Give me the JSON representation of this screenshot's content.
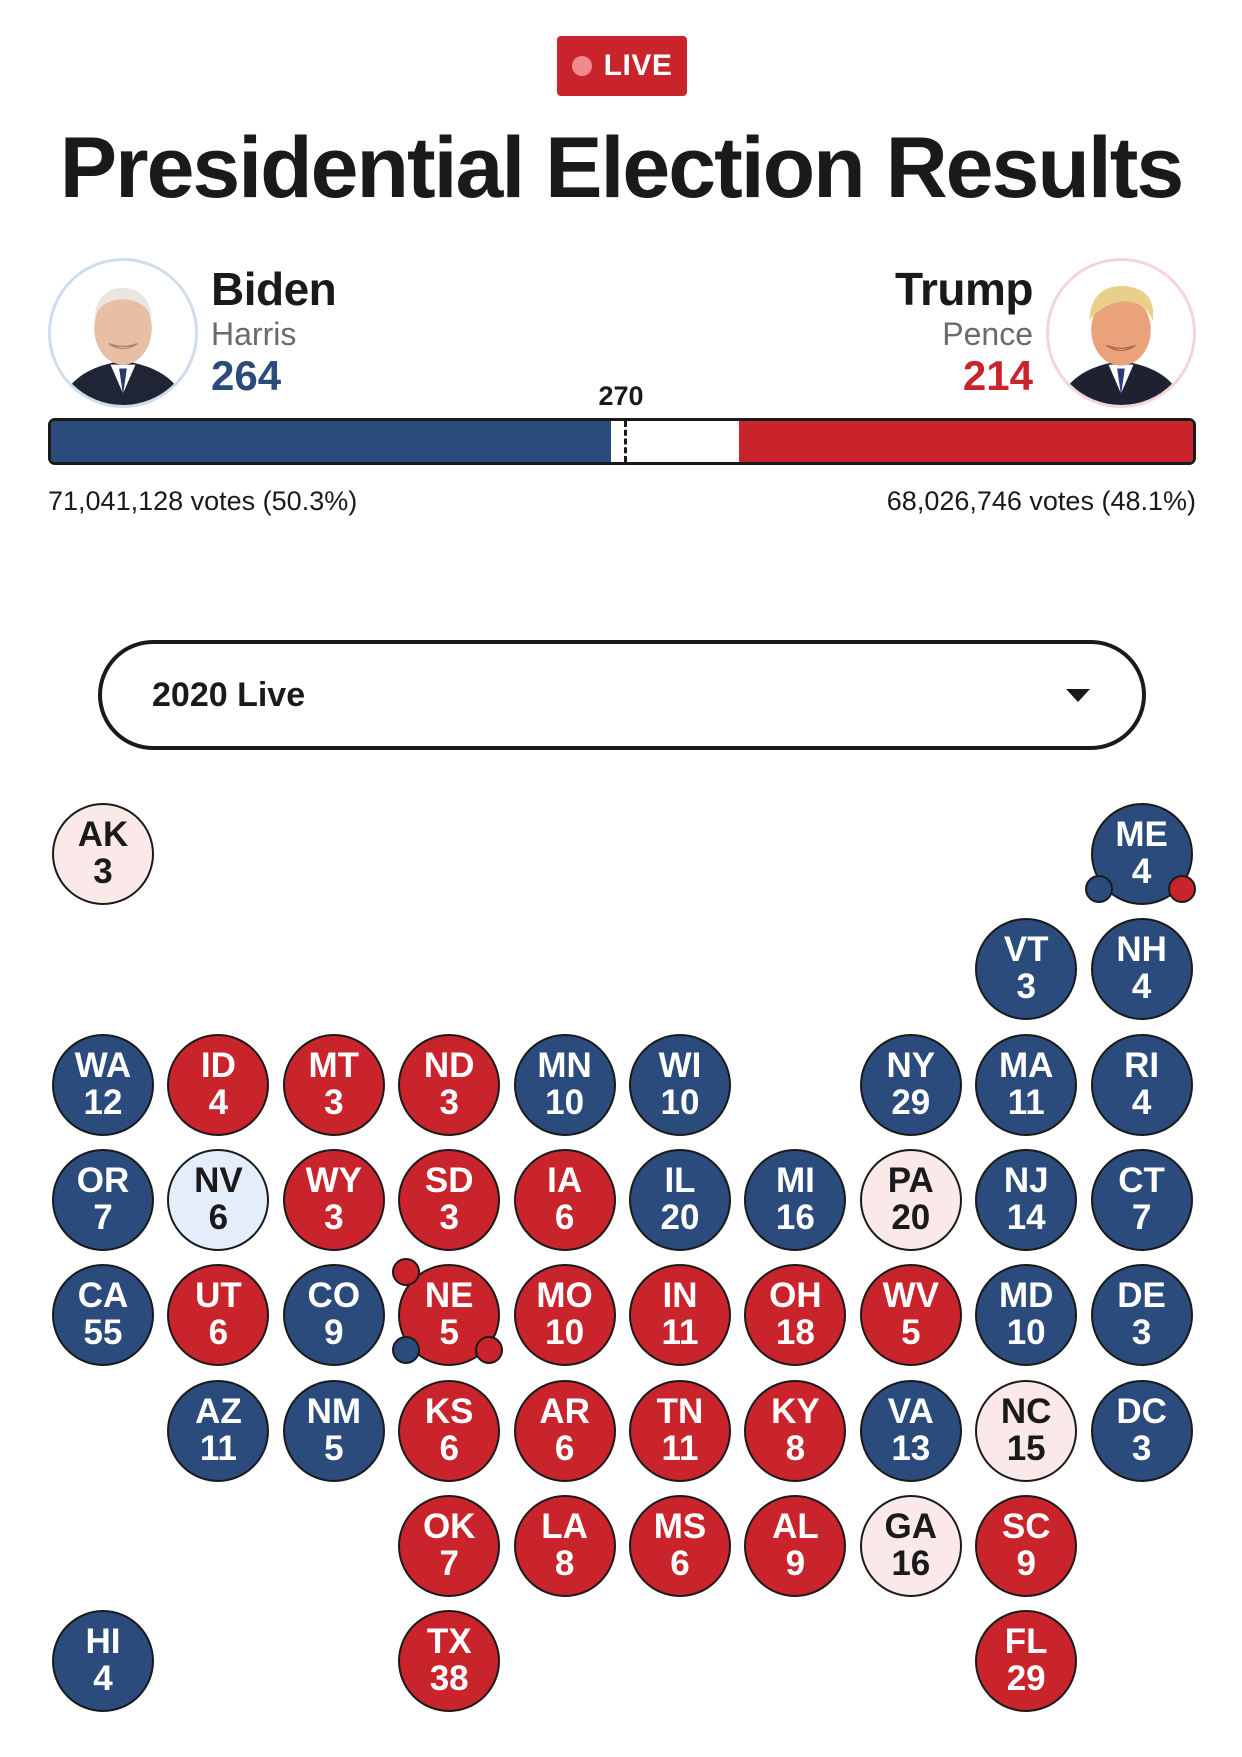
{
  "live_badge": {
    "label": "LIVE"
  },
  "title": "Presidential Election Results",
  "candidates": {
    "dem": {
      "name": "Biden",
      "running_mate": "Harris",
      "electoral_votes": "264",
      "popular": "71,041,128 votes (50.3%)",
      "color": "#2a4b7c"
    },
    "rep": {
      "name": "Trump",
      "running_mate": "Pence",
      "electoral_votes": "214",
      "popular": "68,026,746 votes (48.1%)",
      "color": "#c9242b"
    }
  },
  "threshold": {
    "label": "270",
    "value": 270
  },
  "total_electoral_votes": 538,
  "year_selector": {
    "selected": "2020 Live"
  },
  "colors": {
    "dem": "#2a4b7c",
    "rep": "#c9242b",
    "lean_rep": "#fbe9ea",
    "lean_dem": "#e4eefb"
  },
  "states": [
    {
      "abbr": "AK",
      "ev": "3",
      "status": "LR"
    },
    {
      "abbr": "ME",
      "ev": "4",
      "status": "D"
    },
    {
      "abbr": "VT",
      "ev": "3",
      "status": "D"
    },
    {
      "abbr": "NH",
      "ev": "4",
      "status": "D"
    },
    {
      "abbr": "WA",
      "ev": "12",
      "status": "D"
    },
    {
      "abbr": "ID",
      "ev": "4",
      "status": "R"
    },
    {
      "abbr": "MT",
      "ev": "3",
      "status": "R"
    },
    {
      "abbr": "ND",
      "ev": "3",
      "status": "R"
    },
    {
      "abbr": "MN",
      "ev": "10",
      "status": "D"
    },
    {
      "abbr": "WI",
      "ev": "10",
      "status": "D"
    },
    {
      "abbr": "NY",
      "ev": "29",
      "status": "D"
    },
    {
      "abbr": "MA",
      "ev": "11",
      "status": "D"
    },
    {
      "abbr": "RI",
      "ev": "4",
      "status": "D"
    },
    {
      "abbr": "OR",
      "ev": "7",
      "status": "D"
    },
    {
      "abbr": "NV",
      "ev": "6",
      "status": "LD"
    },
    {
      "abbr": "WY",
      "ev": "3",
      "status": "R"
    },
    {
      "abbr": "SD",
      "ev": "3",
      "status": "R"
    },
    {
      "abbr": "IA",
      "ev": "6",
      "status": "R"
    },
    {
      "abbr": "IL",
      "ev": "20",
      "status": "D"
    },
    {
      "abbr": "MI",
      "ev": "16",
      "status": "D"
    },
    {
      "abbr": "PA",
      "ev": "20",
      "status": "LR"
    },
    {
      "abbr": "NJ",
      "ev": "14",
      "status": "D"
    },
    {
      "abbr": "CT",
      "ev": "7",
      "status": "D"
    },
    {
      "abbr": "CA",
      "ev": "55",
      "status": "D"
    },
    {
      "abbr": "UT",
      "ev": "6",
      "status": "R"
    },
    {
      "abbr": "CO",
      "ev": "9",
      "status": "D"
    },
    {
      "abbr": "NE",
      "ev": "5",
      "status": "R"
    },
    {
      "abbr": "MO",
      "ev": "10",
      "status": "R"
    },
    {
      "abbr": "IN",
      "ev": "11",
      "status": "R"
    },
    {
      "abbr": "OH",
      "ev": "18",
      "status": "R"
    },
    {
      "abbr": "WV",
      "ev": "5",
      "status": "R"
    },
    {
      "abbr": "MD",
      "ev": "10",
      "status": "D"
    },
    {
      "abbr": "DE",
      "ev": "3",
      "status": "D"
    },
    {
      "abbr": "AZ",
      "ev": "11",
      "status": "D"
    },
    {
      "abbr": "NM",
      "ev": "5",
      "status": "D"
    },
    {
      "abbr": "KS",
      "ev": "6",
      "status": "R"
    },
    {
      "abbr": "AR",
      "ev": "6",
      "status": "R"
    },
    {
      "abbr": "TN",
      "ev": "11",
      "status": "R"
    },
    {
      "abbr": "KY",
      "ev": "8",
      "status": "R"
    },
    {
      "abbr": "VA",
      "ev": "13",
      "status": "D"
    },
    {
      "abbr": "NC",
      "ev": "15",
      "status": "LR"
    },
    {
      "abbr": "DC",
      "ev": "3",
      "status": "D"
    },
    {
      "abbr": "OK",
      "ev": "7",
      "status": "R"
    },
    {
      "abbr": "LA",
      "ev": "8",
      "status": "R"
    },
    {
      "abbr": "MS",
      "ev": "6",
      "status": "R"
    },
    {
      "abbr": "AL",
      "ev": "9",
      "status": "R"
    },
    {
      "abbr": "GA",
      "ev": "16",
      "status": "LR"
    },
    {
      "abbr": "SC",
      "ev": "9",
      "status": "R"
    },
    {
      "abbr": "HI",
      "ev": "4",
      "status": "D"
    },
    {
      "abbr": "TX",
      "ev": "38",
      "status": "R"
    },
    {
      "abbr": "FL",
      "ev": "29",
      "status": "R"
    }
  ],
  "districts": [
    {
      "state": "ME",
      "district": "1",
      "status": "D"
    },
    {
      "state": "ME",
      "district": "2",
      "status": "R"
    },
    {
      "state": "NE",
      "district": "1",
      "status": "R"
    },
    {
      "state": "NE",
      "district": "2",
      "status": "D"
    },
    {
      "state": "NE",
      "district": "3",
      "status": "R"
    }
  ]
}
